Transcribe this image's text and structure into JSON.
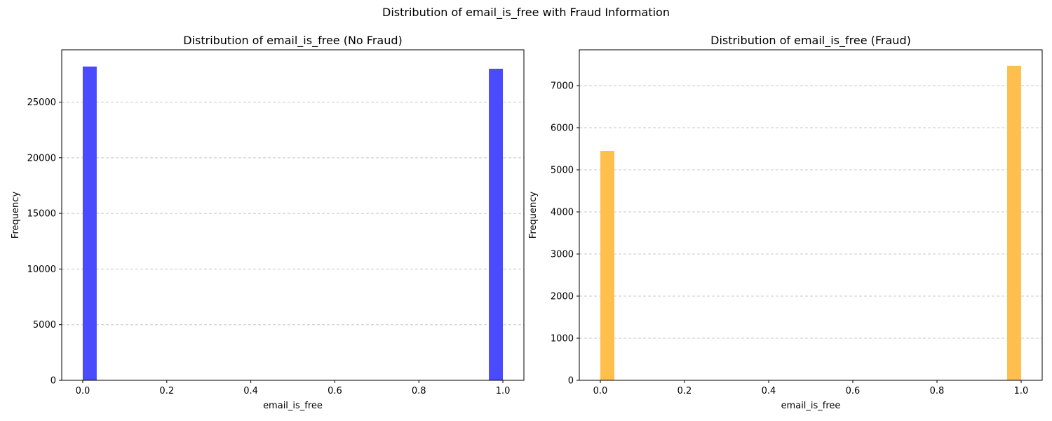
{
  "figure": {
    "suptitle": "Distribution of email_is_free with Fraud Information"
  },
  "chart_data": [
    {
      "type": "bar",
      "title": "Distribution of email_is_free (No Fraud)",
      "xlabel": "email_is_free",
      "ylabel": "Frequency",
      "color": "#4a4aff",
      "alpha": 0.7,
      "grid": "y-dashed",
      "xlim": [
        -0.05,
        1.05
      ],
      "ylim": [
        0,
        29700
      ],
      "xticks": [
        0.0,
        0.2,
        0.4,
        0.6,
        0.8,
        1.0
      ],
      "xtick_labels": [
        "0.0",
        "0.2",
        "0.4",
        "0.6",
        "0.8",
        "1.0"
      ],
      "yticks": [
        0,
        5000,
        10000,
        15000,
        20000,
        25000
      ],
      "ytick_labels": [
        "0",
        "5000",
        "10000",
        "15000",
        "20000",
        "25000"
      ],
      "bins": [
        {
          "x0": 0.0,
          "x1": 0.0333,
          "value": 28200
        },
        {
          "x0": 0.9667,
          "x1": 1.0,
          "value": 28000
        }
      ]
    },
    {
      "type": "bar",
      "title": "Distribution of email_is_free (Fraud)",
      "xlabel": "email_is_free",
      "ylabel": "Frequency",
      "color": "#ffbf4d",
      "alpha": 0.7,
      "grid": "y-dashed",
      "xlim": [
        -0.05,
        1.05
      ],
      "ylim": [
        0,
        7850
      ],
      "xticks": [
        0.0,
        0.2,
        0.4,
        0.6,
        0.8,
        1.0
      ],
      "xtick_labels": [
        "0.0",
        "0.2",
        "0.4",
        "0.6",
        "0.8",
        "1.0"
      ],
      "yticks": [
        0,
        1000,
        2000,
        3000,
        4000,
        5000,
        6000,
        7000
      ],
      "ytick_labels": [
        "0",
        "1000",
        "2000",
        "3000",
        "4000",
        "5000",
        "6000",
        "7000"
      ],
      "bins": [
        {
          "x0": 0.0,
          "x1": 0.0333,
          "value": 5450
        },
        {
          "x0": 0.9667,
          "x1": 1.0,
          "value": 7470
        }
      ]
    }
  ]
}
